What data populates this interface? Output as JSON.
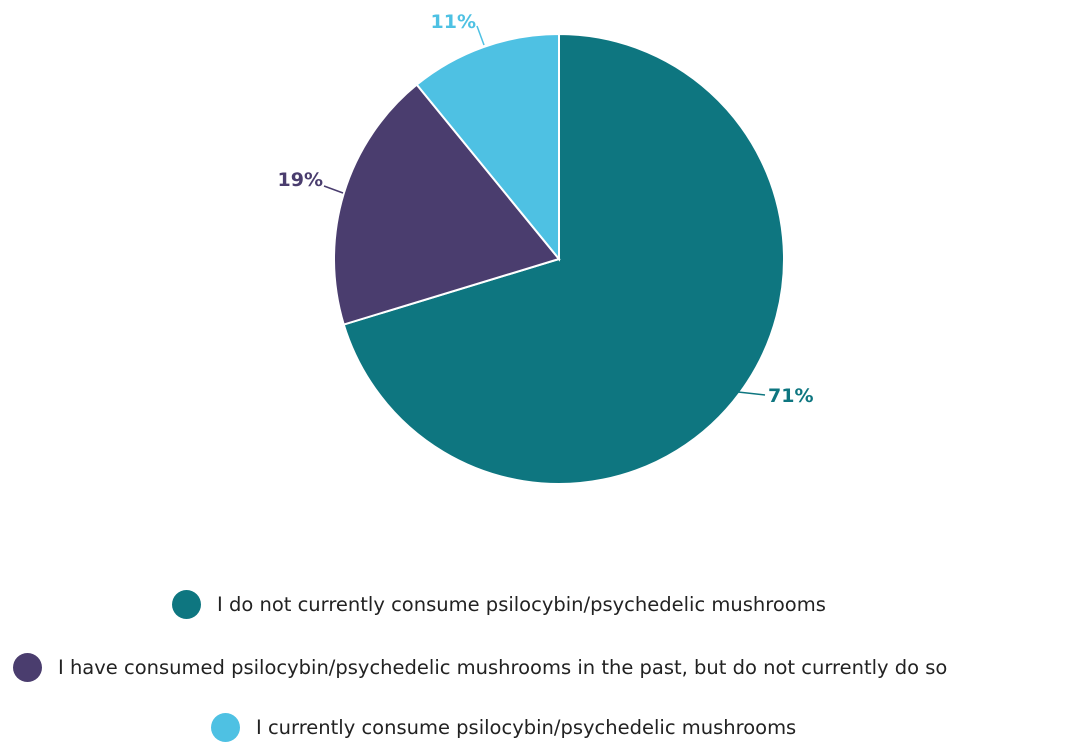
{
  "chart_data": {
    "type": "pie",
    "slices": [
      {
        "label": "I do not currently consume psilocybin/psychedelic mushrooms",
        "value": 71,
        "value_label": "71%",
        "color": "#0e7680"
      },
      {
        "label": "I have consumed psilocybin/psychedelic mushrooms in the past, but do not currently do so",
        "value": 19,
        "value_label": "19%",
        "color": "#4a3d6e"
      },
      {
        "label": "I currently consume psilocybin/psychedelic mushrooms",
        "value": 11,
        "value_label": "11%",
        "color": "#4ec1e3"
      }
    ],
    "start_direction": "top",
    "direction": "clockwise",
    "legend_position": "bottom"
  }
}
